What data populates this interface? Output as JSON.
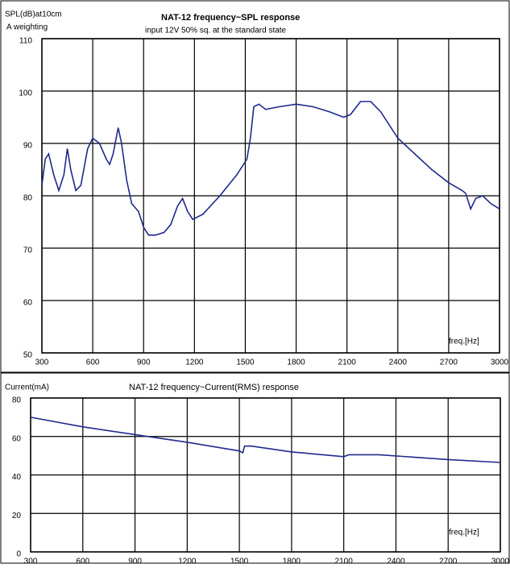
{
  "chart_data": [
    {
      "type": "line",
      "title": "NAT-12 frequency~SPL response",
      "subtitle": "input 12V  50% sq. at the standard state",
      "ylabel": "SPL(dB)at10cm",
      "note": "A weighting",
      "xlabel": "freq.[Hz]",
      "color": "#1f2a8c",
      "grid": true,
      "xlim": [
        300,
        3000
      ],
      "xticks": [
        300,
        600,
        900,
        1200,
        1500,
        1800,
        2100,
        2400,
        2700,
        3000
      ],
      "ylim": [
        50,
        110
      ],
      "yticks": [
        50,
        60,
        70,
        80,
        90,
        100,
        110
      ],
      "x": [
        300,
        320,
        340,
        370,
        400,
        430,
        450,
        470,
        500,
        530,
        570,
        600,
        640,
        680,
        700,
        720,
        750,
        770,
        800,
        830,
        870,
        900,
        930,
        970,
        1020,
        1060,
        1100,
        1130,
        1160,
        1190,
        1250,
        1350,
        1450,
        1510,
        1530,
        1550,
        1580,
        1620,
        1700,
        1800,
        1900,
        2000,
        2080,
        2120,
        2180,
        2240,
        2300,
        2400,
        2500,
        2600,
        2700,
        2780,
        2800,
        2830,
        2860,
        2900,
        2950,
        3000
      ],
      "values": [
        82,
        87,
        88,
        84,
        81,
        84,
        89,
        85,
        81,
        82,
        89,
        91,
        90,
        87,
        86,
        88,
        93,
        90,
        83,
        78.5,
        77,
        74,
        72.5,
        72.5,
        73,
        74.5,
        78,
        79.5,
        77,
        75.5,
        76.5,
        80,
        84,
        87,
        91,
        97,
        97.5,
        96.5,
        97,
        97.5,
        97,
        96,
        95,
        95.5,
        98,
        98,
        96,
        91,
        88,
        85,
        82.5,
        81,
        80.5,
        77.5,
        79.5,
        80,
        78.5,
        77.5
      ]
    },
    {
      "type": "line",
      "title": "NAT-12 frequency~Current(RMS) response",
      "ylabel": "Current(mA)",
      "xlabel": "freq.[Hz]",
      "color": "#1f2a8c",
      "grid": true,
      "xlim": [
        300,
        3000
      ],
      "xticks": [
        300,
        600,
        900,
        1200,
        1500,
        1800,
        2100,
        2400,
        2700,
        3000
      ],
      "ylim": [
        0,
        80
      ],
      "yticks": [
        0,
        20,
        40,
        60,
        80
      ],
      "x": [
        300,
        600,
        900,
        1200,
        1500,
        1520,
        1530,
        1570,
        1800,
        2100,
        2130,
        2300,
        2700,
        3000
      ],
      "values": [
        70,
        65,
        61,
        57,
        52.5,
        51.5,
        55,
        55,
        52,
        49.5,
        50.5,
        50.5,
        48,
        46.5
      ]
    }
  ]
}
